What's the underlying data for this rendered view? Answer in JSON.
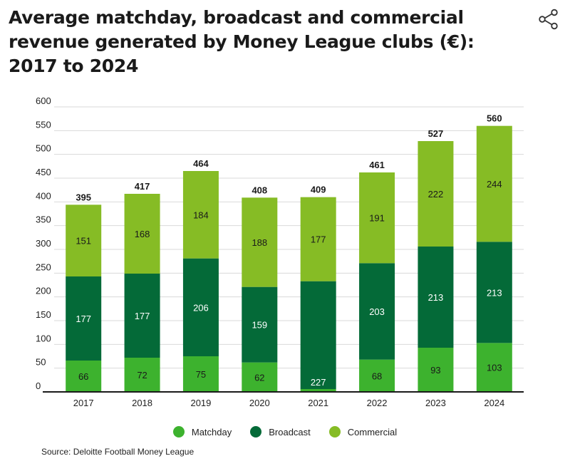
{
  "title": "Average matchday, broadcast and commercial revenue generated by Money League clubs (€): 2017 to 2024",
  "share_icon": "share-icon",
  "source": "Source: Deloitte Football Money League",
  "colors": {
    "matchday": "#3db22e",
    "broadcast": "#046a38",
    "commercial": "#86bc25",
    "grid": "#d9d9d9",
    "axis": "#1a1a1a"
  },
  "chart_data": {
    "type": "bar",
    "stacked": true,
    "categories": [
      "2017",
      "2018",
      "2019",
      "2020",
      "2021",
      "2022",
      "2023",
      "2024"
    ],
    "series": [
      {
        "name": "Matchday",
        "values": [
          66,
          72,
          75,
          62,
          6,
          68,
          93,
          103
        ]
      },
      {
        "name": "Broadcast",
        "values": [
          177,
          177,
          206,
          159,
          227,
          203,
          213,
          213
        ]
      },
      {
        "name": "Commercial",
        "values": [
          151,
          168,
          184,
          188,
          177,
          191,
          222,
          244
        ]
      }
    ],
    "segment_labels": [
      [
        "66",
        "72",
        "75",
        "62",
        "",
        "68",
        "93",
        "103"
      ],
      [
        "177",
        "177",
        "206",
        "159",
        "227",
        "203",
        "213",
        "213"
      ],
      [
        "151",
        "168",
        "184",
        "188",
        "177",
        "191",
        "222",
        "244"
      ]
    ],
    "totals": [
      "395",
      "417",
      "464",
      "408",
      "409",
      "461",
      "527",
      "560"
    ],
    "ylim": [
      0,
      600
    ],
    "yticks": [
      "0",
      "50",
      "100",
      "150",
      "200",
      "250",
      "300",
      "350",
      "400",
      "450",
      "500",
      "550",
      "600"
    ],
    "grid": true,
    "legend_position": "bottom-center"
  }
}
